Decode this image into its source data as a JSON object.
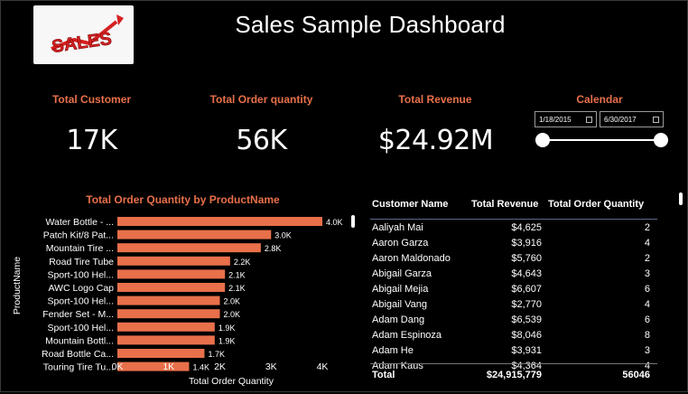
{
  "header": {
    "title": "Sales Sample Dashboard",
    "logo_text": "SALES"
  },
  "kpis": [
    {
      "label": "Total Customer",
      "value": "17K"
    },
    {
      "label": "Total Order quantity",
      "value": "56K"
    },
    {
      "label": "Total Revenue",
      "value": "$24.92M"
    }
  ],
  "calendar": {
    "label": "Calendar",
    "start_date": "1/18/2015",
    "end_date": "6/30/2017"
  },
  "colors": {
    "accent": "#e8704a",
    "bar": "#e8704a",
    "background": "#000000"
  },
  "chart_data": {
    "type": "bar",
    "orientation": "horizontal",
    "title": "Total Order Quantity by ProductName",
    "xlabel": "Total Order Quantity",
    "ylabel": "ProductName",
    "categories": [
      "Water Bottle - ...",
      "Patch Kit/8 Pat...",
      "Mountain Tire ...",
      "Road Tire Tube",
      "Sport-100 Hel...",
      "AWC Logo Cap",
      "Sport-100 Hel...",
      "Fender Set - M...",
      "Sport-100 Hel...",
      "Mountain Bottl...",
      "Road Bottle Ca...",
      "Touring Tire Tu..."
    ],
    "values": [
      4000,
      3000,
      2800,
      2200,
      2100,
      2100,
      2000,
      2000,
      1900,
      1900,
      1700,
      1400
    ],
    "data_labels": [
      "4.0K",
      "3.0K",
      "2.8K",
      "2.2K",
      "2.1K",
      "2.1K",
      "2.0K",
      "2.0K",
      "1.9K",
      "1.9K",
      "1.7K",
      "1.4K"
    ],
    "xticks": [
      "0K",
      "1K",
      "2K",
      "3K",
      "4K"
    ],
    "xlim": [
      0,
      4000
    ],
    "grid": false
  },
  "table": {
    "columns": [
      "Customer Name",
      "Total Revenue",
      "Total Order Quantity"
    ],
    "rows": [
      [
        "Aaliyah Mai",
        "$4,625",
        "2"
      ],
      [
        "Aaron Garza",
        "$3,916",
        "4"
      ],
      [
        "Aaron Maldonado",
        "$5,760",
        "2"
      ],
      [
        "Abigail Garza",
        "$4,643",
        "3"
      ],
      [
        "Abigail Mejia",
        "$6,607",
        "6"
      ],
      [
        "Abigail Vang",
        "$2,770",
        "4"
      ],
      [
        "Adam Dang",
        "$6,539",
        "6"
      ],
      [
        "Adam Espinoza",
        "$8,046",
        "8"
      ],
      [
        "Adam He",
        "$3,931",
        "3"
      ],
      [
        "Adam Kaus",
        "$4,364",
        "4"
      ]
    ],
    "total": {
      "label": "Total",
      "revenue": "$24,915,779",
      "quantity": "56046"
    }
  }
}
